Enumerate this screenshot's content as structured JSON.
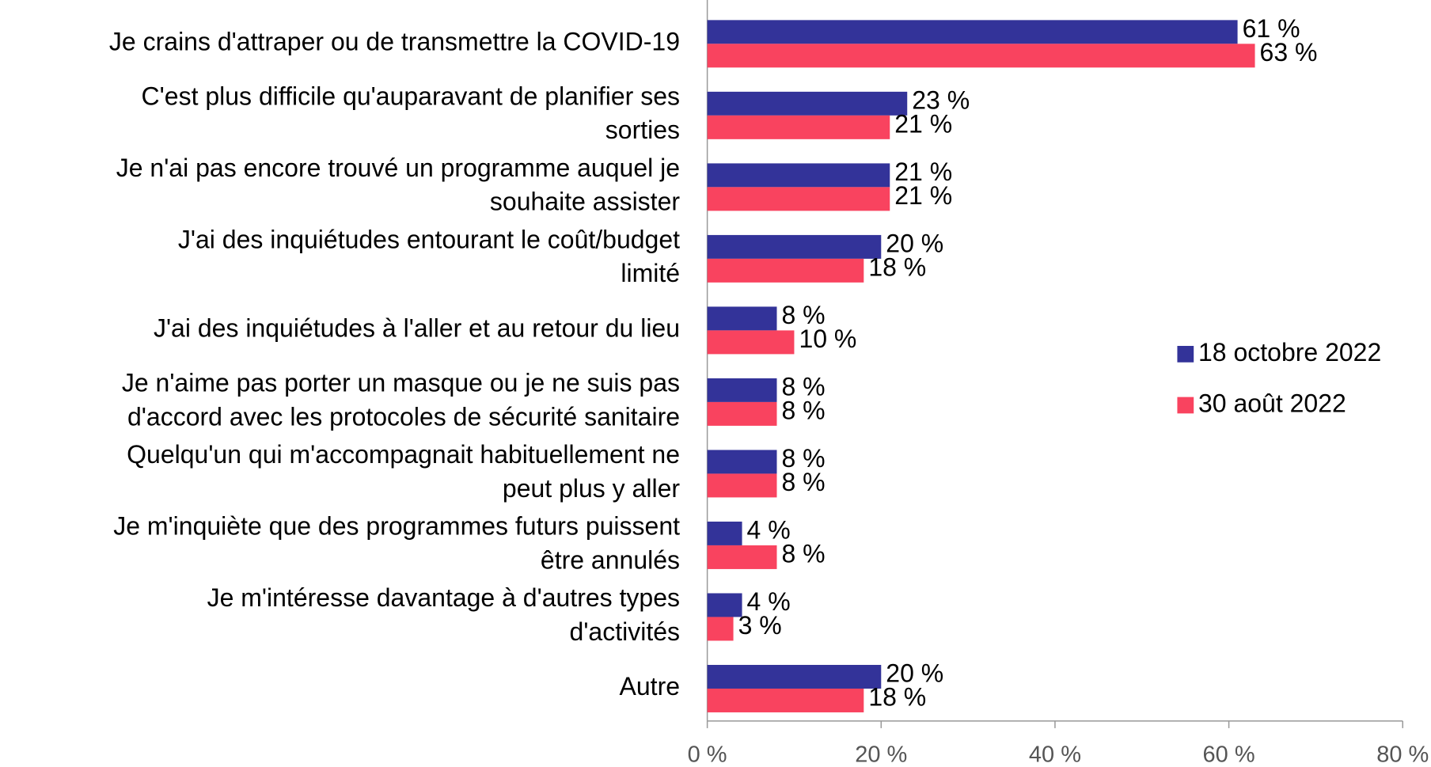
{
  "chart_data": {
    "type": "hbar",
    "categories": [
      "Je crains d'attraper ou de transmettre la COVID-19",
      "C'est plus difficile qu'auparavant de planifier ses\nsorties",
      "Je n'ai pas encore trouvé un programme auquel je\nsouhaite assister",
      "J'ai des inquiétudes entourant le coût/budget\nlimité",
      "J'ai des inquiétudes à l'aller et au retour du lieu",
      "Je n'aime pas porter un masque ou je ne suis pas\nd'accord avec les protocoles de sécurité sanitaire",
      "Quelqu'un qui m'accompagnait habituellement ne\npeut plus y aller",
      "Je m'inquiète que des programmes futurs puissent\nêtre annulés",
      "Je m'intéresse davantage à d'autres types\nd'activités",
      "Autre"
    ],
    "series": [
      {
        "name": "18 octobre 2022",
        "color": "#333399",
        "values": [
          61,
          23,
          21,
          20,
          8,
          8,
          8,
          4,
          4,
          20
        ],
        "value_labels": [
          "61 %",
          "23 %",
          "21 %",
          "20 %",
          "8 %",
          "8 %",
          "8 %",
          "4 %",
          "4 %",
          "20 %"
        ]
      },
      {
        "name": "30 août 2022",
        "color": "#f9435f",
        "values": [
          63,
          21,
          21,
          18,
          10,
          8,
          8,
          8,
          3,
          18
        ],
        "value_labels": [
          "63 %",
          "21 %",
          "21 %",
          "18 %",
          "10 %",
          "8 %",
          "8 %",
          "8 %",
          "3 %",
          "18 %"
        ]
      }
    ],
    "xlim": [
      0,
      80
    ],
    "xticks": [
      {
        "value": 0,
        "label": "0 %"
      },
      {
        "value": 20,
        "label": "20 %"
      },
      {
        "value": 40,
        "label": "40 %"
      },
      {
        "value": 60,
        "label": "60 %"
      },
      {
        "value": 80,
        "label": "80 %"
      }
    ],
    "legend": "right"
  }
}
